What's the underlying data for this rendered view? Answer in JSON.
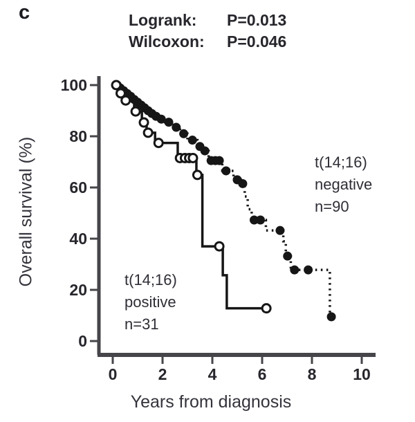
{
  "panel_label": "c",
  "stats": {
    "rows": [
      {
        "label": "Logrank:",
        "value": "P=0.013"
      },
      {
        "label": "Wilcoxon:",
        "value": "P=0.046"
      }
    ]
  },
  "chart_data": {
    "type": "line",
    "variant": "kaplan_meier_step",
    "title": "Logrank: P=0.013; Wilcoxon: P=0.046",
    "xlabel": "Years from diagnosis",
    "ylabel": "Overall survival (%)",
    "xlim": [
      0,
      10.5
    ],
    "ylim": [
      0,
      100
    ],
    "xticks": [
      0,
      2,
      4,
      6,
      8,
      10
    ],
    "yticks": [
      0,
      20,
      40,
      60,
      80,
      100
    ],
    "grid": false,
    "legend_position": "inline-annotations",
    "series": [
      {
        "name": "t(14;16) negative",
        "n": 90,
        "label_lines": [
          "t(14;16)",
          "negative",
          "n=90"
        ],
        "line": "dotted",
        "marker": "filled-circle",
        "color": "#161616",
        "steps": [
          [
            0,
            100
          ],
          [
            0.22,
            98.9
          ],
          [
            0.39,
            97.8
          ],
          [
            0.53,
            96.7
          ],
          [
            0.67,
            95.6
          ],
          [
            0.81,
            94.4
          ],
          [
            0.94,
            93.3
          ],
          [
            1.08,
            92.2
          ],
          [
            1.22,
            91.1
          ],
          [
            1.36,
            90.0
          ],
          [
            1.5,
            88.9
          ],
          [
            1.67,
            87.8
          ],
          [
            1.86,
            86.7
          ],
          [
            2.1,
            85.5
          ],
          [
            2.45,
            83.5
          ],
          [
            2.7,
            81.0
          ],
          [
            3.0,
            78.5
          ],
          [
            3.4,
            76.0
          ],
          [
            3.6,
            74.3
          ],
          [
            3.85,
            70.5
          ],
          [
            4.4,
            66.5
          ],
          [
            4.85,
            63.0
          ],
          [
            5.15,
            61.5
          ],
          [
            5.3,
            56.5
          ],
          [
            5.42,
            51.5
          ],
          [
            5.58,
            47.3
          ],
          [
            6.15,
            43.2
          ],
          [
            6.85,
            39.0
          ],
          [
            6.95,
            33.2
          ],
          [
            7.15,
            27.8
          ],
          [
            8.72,
            9.5
          ]
        ],
        "end_time": 8.78,
        "markers": [
          [
            0.18,
            100
          ],
          [
            0.3,
            98.9
          ],
          [
            0.44,
            97.8
          ],
          [
            0.58,
            96.7
          ],
          [
            0.72,
            95.6
          ],
          [
            0.86,
            94.4
          ],
          [
            1.0,
            93.3
          ],
          [
            1.14,
            92.2
          ],
          [
            1.28,
            91.1
          ],
          [
            1.42,
            90.0
          ],
          [
            1.57,
            88.9
          ],
          [
            1.74,
            87.8
          ],
          [
            1.95,
            86.7
          ],
          [
            2.25,
            85.5
          ],
          [
            2.55,
            83.5
          ],
          [
            2.85,
            81.0
          ],
          [
            3.2,
            78.5
          ],
          [
            3.5,
            76.0
          ],
          [
            3.7,
            74.3
          ],
          [
            3.95,
            70.5
          ],
          [
            4.12,
            70.5
          ],
          [
            4.28,
            70.5
          ],
          [
            4.55,
            66.5
          ],
          [
            5.0,
            63.0
          ],
          [
            5.22,
            61.5
          ],
          [
            5.68,
            47.3
          ],
          [
            5.93,
            47.3
          ],
          [
            6.72,
            43.2
          ],
          [
            7.02,
            33.2
          ],
          [
            7.3,
            27.8
          ],
          [
            7.85,
            27.8
          ],
          [
            8.78,
            9.5
          ]
        ]
      },
      {
        "name": "t(14;16) positive",
        "n": 31,
        "label_lines": [
          "t(14;16)",
          "positive",
          "n=31"
        ],
        "line": "solid",
        "marker": "open-circle",
        "color": "#161616",
        "steps": [
          [
            0,
            100
          ],
          [
            0.25,
            96.8
          ],
          [
            0.47,
            94.0
          ],
          [
            0.86,
            89.7
          ],
          [
            1.17,
            85.4
          ],
          [
            1.36,
            81.4
          ],
          [
            1.7,
            77.4
          ],
          [
            2.61,
            71.5
          ],
          [
            3.36,
            64.9
          ],
          [
            3.6,
            37.0
          ],
          [
            4.42,
            25.7
          ],
          [
            4.58,
            12.8
          ]
        ],
        "end_time": 6.17,
        "markers": [
          [
            0.14,
            100
          ],
          [
            0.32,
            96.8
          ],
          [
            0.52,
            94.0
          ],
          [
            0.92,
            89.7
          ],
          [
            1.25,
            85.4
          ],
          [
            1.42,
            81.4
          ],
          [
            1.84,
            77.4
          ],
          [
            2.7,
            71.5
          ],
          [
            2.9,
            71.5
          ],
          [
            3.07,
            71.5
          ],
          [
            3.22,
            71.5
          ],
          [
            3.4,
            64.9
          ],
          [
            4.28,
            37.0
          ],
          [
            6.17,
            12.8
          ]
        ]
      }
    ]
  }
}
